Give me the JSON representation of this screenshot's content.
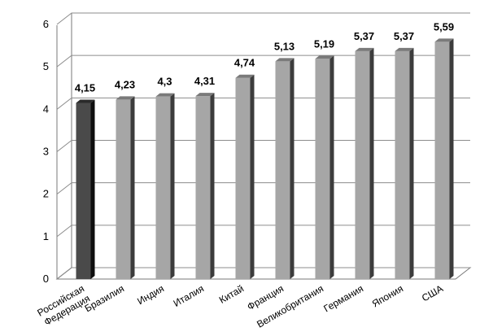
{
  "chart_data": {
    "type": "bar",
    "title": "",
    "xlabel": "",
    "ylabel": "",
    "ylim": [
      0,
      6
    ],
    "yticks": [
      0,
      1,
      2,
      3,
      4,
      5,
      6
    ],
    "grid": true,
    "categories": [
      "Российская Федерация",
      "Бразилия",
      "Индия",
      "Италия",
      "Китай",
      "Франция",
      "Великобритания",
      "Германия",
      "Япония",
      "США"
    ],
    "values": [
      4.15,
      4.23,
      4.3,
      4.31,
      4.74,
      5.13,
      5.19,
      5.37,
      5.37,
      5.59
    ],
    "value_labels": [
      "4,15",
      "4,23",
      "4,3",
      "4,31",
      "4,74",
      "5,13",
      "5,19",
      "5,37",
      "5,37",
      "5,59"
    ],
    "highlight_index": 0,
    "colors": {
      "highlight_front": "#4a4a4a",
      "highlight_side": "#0e0e0e",
      "highlight_top": "#2a2a2a",
      "bar_front": "#a6a6a6",
      "bar_side": "#3c3c3c",
      "bar_top": "#7a7a7a",
      "grid": "#8c8c8c",
      "axis": "#7a7a7a"
    }
  }
}
